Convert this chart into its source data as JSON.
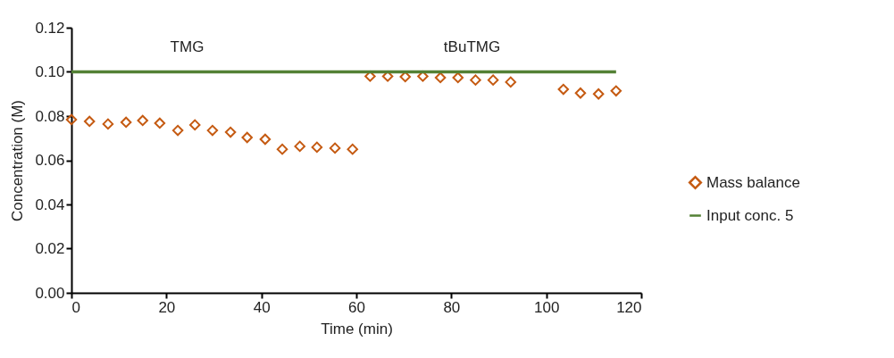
{
  "chart_data": {
    "type": "scatter",
    "xlabel": "Time (min)",
    "ylabel": "Concentration (M)",
    "xlim": [
      0,
      120
    ],
    "xticks": [
      0,
      20,
      40,
      60,
      80,
      100,
      120
    ],
    "ylim": [
      0,
      0.12
    ],
    "yticks": [
      {
        "value": 0,
        "label": "0.00"
      },
      {
        "value": 0.02,
        "label": "0.02"
      },
      {
        "value": 0.04,
        "label": "0.04"
      },
      {
        "value": 0.06,
        "label": "0.06"
      },
      {
        "value": 0.08,
        "label": "0.08"
      },
      {
        "value": 0.1,
        "label": "0.10"
      },
      {
        "value": 0.12,
        "label": "0.12"
      }
    ],
    "grid": false,
    "legend": "right",
    "marker": "diamond",
    "series": [
      {
        "name": "Mass balance",
        "color": "#c55a11",
        "x": [
          0,
          3.8,
          7.7,
          11.5,
          15.0,
          18.6,
          22.4,
          26.0,
          29.7,
          33.5,
          37.0,
          40.8,
          44.4,
          48.1,
          51.7,
          55.5,
          59.2,
          62.9,
          66.6,
          70.3,
          74.0,
          77.7,
          81.4,
          85.1,
          88.8,
          92.5,
          103.6,
          107.2,
          111.0,
          114.7
        ],
        "values": [
          0.0784,
          0.0776,
          0.0764,
          0.0772,
          0.078,
          0.0768,
          0.0735,
          0.076,
          0.0735,
          0.0727,
          0.0703,
          0.0695,
          0.065,
          0.0663,
          0.0659,
          0.0655,
          0.065,
          0.098,
          0.098,
          0.0978,
          0.098,
          0.0974,
          0.0974,
          0.0963,
          0.0963,
          0.0954,
          0.0921,
          0.0904,
          0.09,
          0.0914
        ]
      },
      {
        "name": "Input conc. 5",
        "type": "line",
        "marker": "none",
        "color": "#538135",
        "x": [
          0,
          114.7
        ],
        "values": [
          0.1,
          0.1
        ]
      }
    ],
    "annotations": [
      "TMG",
      "tBuTMG"
    ]
  }
}
